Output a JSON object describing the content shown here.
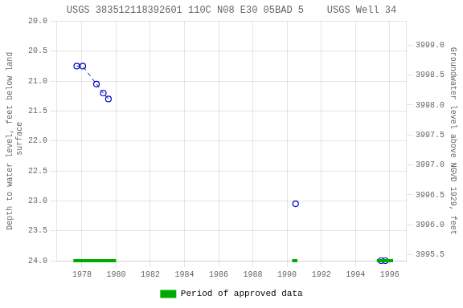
{
  "chart_data": {
    "type": "line",
    "title": "USGS 383512118392601 110C N08 E30 05BAD 5    USGS Well 34",
    "ylabel": "Depth to water level, feet below land\n surface",
    "y2label": "Groundwater level above NGVD 1929, feet",
    "xlim": [
      1976.5,
      1997.0
    ],
    "xticks": [
      1978,
      1980,
      1982,
      1984,
      1986,
      1988,
      1990,
      1992,
      1994,
      1996
    ],
    "ylim": [
      24.0,
      20.0
    ],
    "yticks": [
      {
        "value": 20.0,
        "label": "20.0"
      },
      20.5,
      {
        "value": 21.0,
        "label": "21.0"
      },
      21.5,
      {
        "value": 22.0,
        "label": "22.0"
      },
      22.5,
      {
        "value": 23.0,
        "label": "23.0"
      },
      23.5,
      {
        "value": 24.0,
        "label": "24.0"
      }
    ],
    "y2lim": [
      3995.4,
      3999.4
    ],
    "y2ticks": [
      {
        "value": 3999.0,
        "label": "3999.0"
      },
      3998.5,
      {
        "value": 3998.0,
        "label": "3998.0"
      },
      3997.5,
      {
        "value": 3997.0,
        "label": "3997.0"
      },
      3996.5,
      {
        "value": 3996.0,
        "label": "3996.0"
      },
      3995.5
    ],
    "grid": true,
    "legend": "bottom",
    "series": [
      {
        "x": [
          1977.7,
          1978.05,
          1978.85,
          1979.25,
          1979.55
        ],
        "values": [
          20.75,
          20.75,
          21.05,
          21.2,
          21.3
        ],
        "color": "#0000cc",
        "marker": "circle",
        "line_style": "dashed"
      },
      {
        "x": [
          1990.5
        ],
        "values": [
          23.05
        ],
        "color": "#0000cc",
        "marker": "circle",
        "line_style": "none"
      },
      {
        "x": [
          1995.5,
          1995.75
        ],
        "values": [
          24.0,
          24.0
        ],
        "color": "#0000cc",
        "marker": "circle",
        "line_style": "dashed"
      }
    ],
    "approved_periods": {
      "name": "Period of approved data",
      "color": "#00aa00",
      "y": 24.0,
      "ranges": [
        [
          1977.5,
          1980.0
        ],
        [
          1990.3,
          1990.6
        ],
        [
          1995.25,
          1996.2
        ]
      ]
    }
  }
}
